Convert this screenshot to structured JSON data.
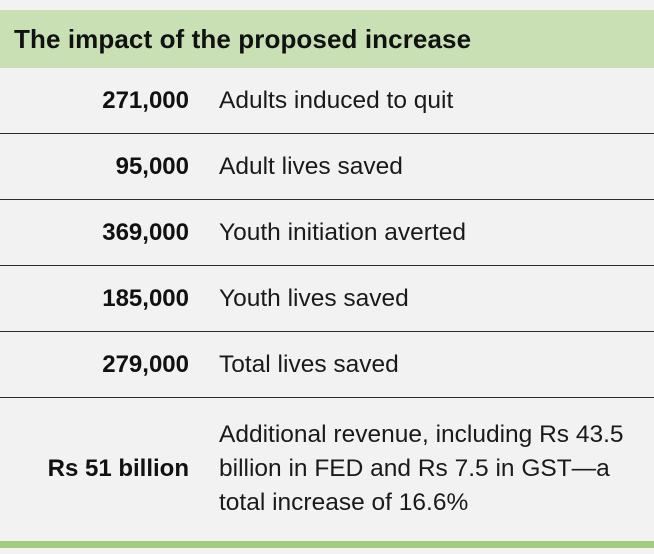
{
  "table": {
    "title": "The impact of the proposed increase",
    "rows": [
      {
        "value": "271,000",
        "label": "Adults induced to quit"
      },
      {
        "value": "95,000",
        "label": "Adult lives saved"
      },
      {
        "value": "369,000",
        "label": "Youth initiation averted"
      },
      {
        "value": "185,000",
        "label": "Youth lives saved"
      },
      {
        "value": "279,000",
        "label": "Total lives saved"
      },
      {
        "value": "Rs 51 billion",
        "label": "Additional revenue, including Rs 43.5 billion in FED and Rs 7.5 in GST—a total increase of 16.6%"
      }
    ]
  },
  "colors": {
    "header_bg": "#c8e0b4",
    "accent_bar": "#a3cc7c",
    "page_bg": "#f2f2f2"
  }
}
